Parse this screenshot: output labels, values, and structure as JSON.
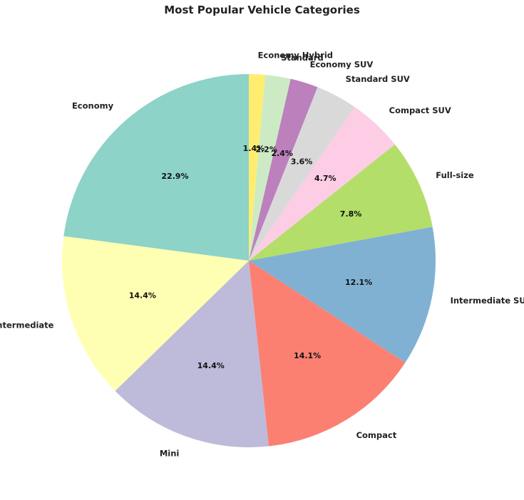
{
  "chart_data": {
    "type": "pie",
    "title": "Most Popular Vehicle Categories",
    "start_angle_deg": 90,
    "direction": "clockwise",
    "slices": [
      {
        "label": "Economy Hybrid",
        "value": 1.4,
        "pct_label": "1.4%",
        "color": "#ffed6f"
      },
      {
        "label": "Standard",
        "value": 2.2,
        "pct_label": "2.2%",
        "color": "#ccebc5"
      },
      {
        "label": "Economy SUV",
        "value": 2.4,
        "pct_label": "2.4%",
        "color": "#bc80bd"
      },
      {
        "label": "Standard SUV",
        "value": 3.6,
        "pct_label": "3.6%",
        "color": "#d9d9d9"
      },
      {
        "label": "Compact SUV",
        "value": 4.7,
        "pct_label": "4.7%",
        "color": "#fccde5"
      },
      {
        "label": "Full-size",
        "value": 7.8,
        "pct_label": "7.8%",
        "color": "#b3de69"
      },
      {
        "label": "Intermediate SUV",
        "value": 12.1,
        "pct_label": "12.1%",
        "color": "#80b1d3"
      },
      {
        "label": "Compact",
        "value": 14.1,
        "pct_label": "14.1%",
        "color": "#fb8072"
      },
      {
        "label": "Mini",
        "value": 14.4,
        "pct_label": "14.4%",
        "color": "#bebada"
      },
      {
        "label": "Intermediate",
        "value": 14.4,
        "pct_label": "14.4%",
        "color": "#ffffb3"
      },
      {
        "label": "Economy",
        "value": 22.9,
        "pct_label": "22.9%",
        "color": "#8dd3c7"
      }
    ]
  }
}
